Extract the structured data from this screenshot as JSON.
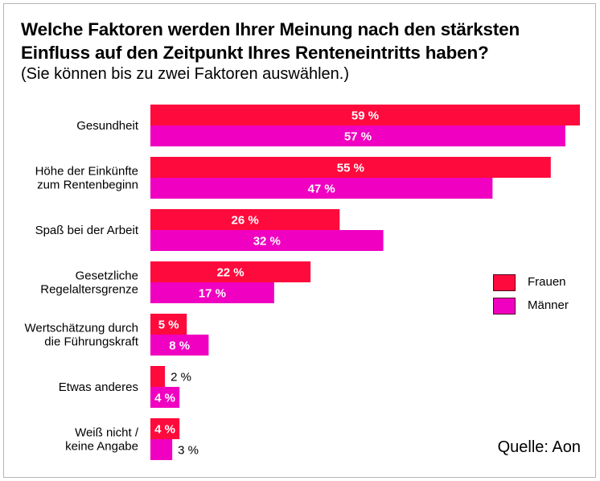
{
  "title_line1": "Welche Faktoren werden Ihrer Meinung nach den stärksten",
  "title_line2": "Einfluss auf den Zeitpunkt Ihres Renteneintritts haben?",
  "subtitle": "(Sie können bis zu zwei Faktoren auswählen.)",
  "source": "Quelle: Aon",
  "colors": {
    "frauen": "#ff0a3c",
    "maenner": "#f000c0",
    "label_inside": "#ffffff",
    "label_outside": "#000000"
  },
  "chart_data": {
    "type": "bar",
    "orientation": "horizontal",
    "title": "Welche Faktoren werden Ihrer Meinung nach den stärksten Einfluss auf den Zeitpunkt Ihres Renteneintritts haben?",
    "subtitle": "(Sie können bis zu zwei Faktoren auswählen.)",
    "xlabel": "",
    "ylabel": "",
    "unit": "%",
    "xlim": [
      0,
      60
    ],
    "grid": false,
    "legend_position": "right",
    "categories": [
      [
        "Gesundheit"
      ],
      [
        "Höhe der Einkünfte",
        "zum Rentenbeginn"
      ],
      [
        "Spaß bei der Arbeit"
      ],
      [
        "Gesetzliche",
        "Regelaltersgrenze"
      ],
      [
        "Wertschätzung durch",
        "die Führungskraft"
      ],
      [
        "Etwas anderes"
      ],
      [
        "Weiß nicht /",
        "keine Angabe"
      ]
    ],
    "series": [
      {
        "name": "Frauen",
        "values": [
          59,
          55,
          26,
          22,
          5,
          2,
          4
        ],
        "labels": [
          "59 %",
          "55 %",
          "26 %",
          "22 %",
          "5 %",
          "2 %",
          "4 %"
        ]
      },
      {
        "name": "Männer",
        "values": [
          57,
          47,
          32,
          17,
          8,
          4,
          3
        ],
        "labels": [
          "57 %",
          "47 %",
          "32 %",
          "17 %",
          "8 %",
          "4 %",
          "3 %"
        ]
      }
    ]
  },
  "legend": [
    {
      "label": "Frauen"
    },
    {
      "label": "Männer"
    }
  ]
}
